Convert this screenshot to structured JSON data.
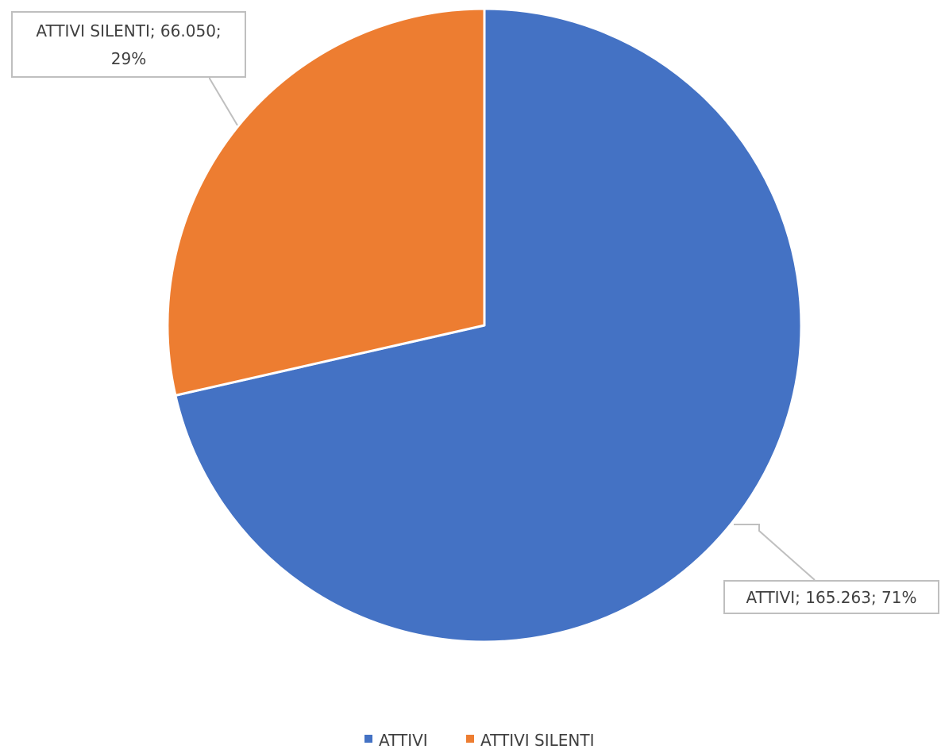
{
  "chart_data": {
    "type": "pie",
    "title": "",
    "start_angle_deg": 0,
    "direction": "clockwise",
    "slices": [
      {
        "label": "ATTIVI",
        "value": 165263,
        "value_text": "165.263",
        "percent_text": "71%",
        "color": "#4472C4",
        "data_label_lines": [
          "ATTIVI; 165.263; 71%"
        ]
      },
      {
        "label": "ATTIVI SILENTI",
        "value": 66050,
        "value_text": "66.050",
        "percent_text": "29%",
        "color": "#ED7D31",
        "data_label_lines": [
          "ATTIVI SILENTI; 66.050;",
          "29%"
        ]
      }
    ],
    "legend": {
      "placement": "bottom",
      "entries": [
        "ATTIVI",
        "ATTIVI SILENTI"
      ]
    }
  }
}
